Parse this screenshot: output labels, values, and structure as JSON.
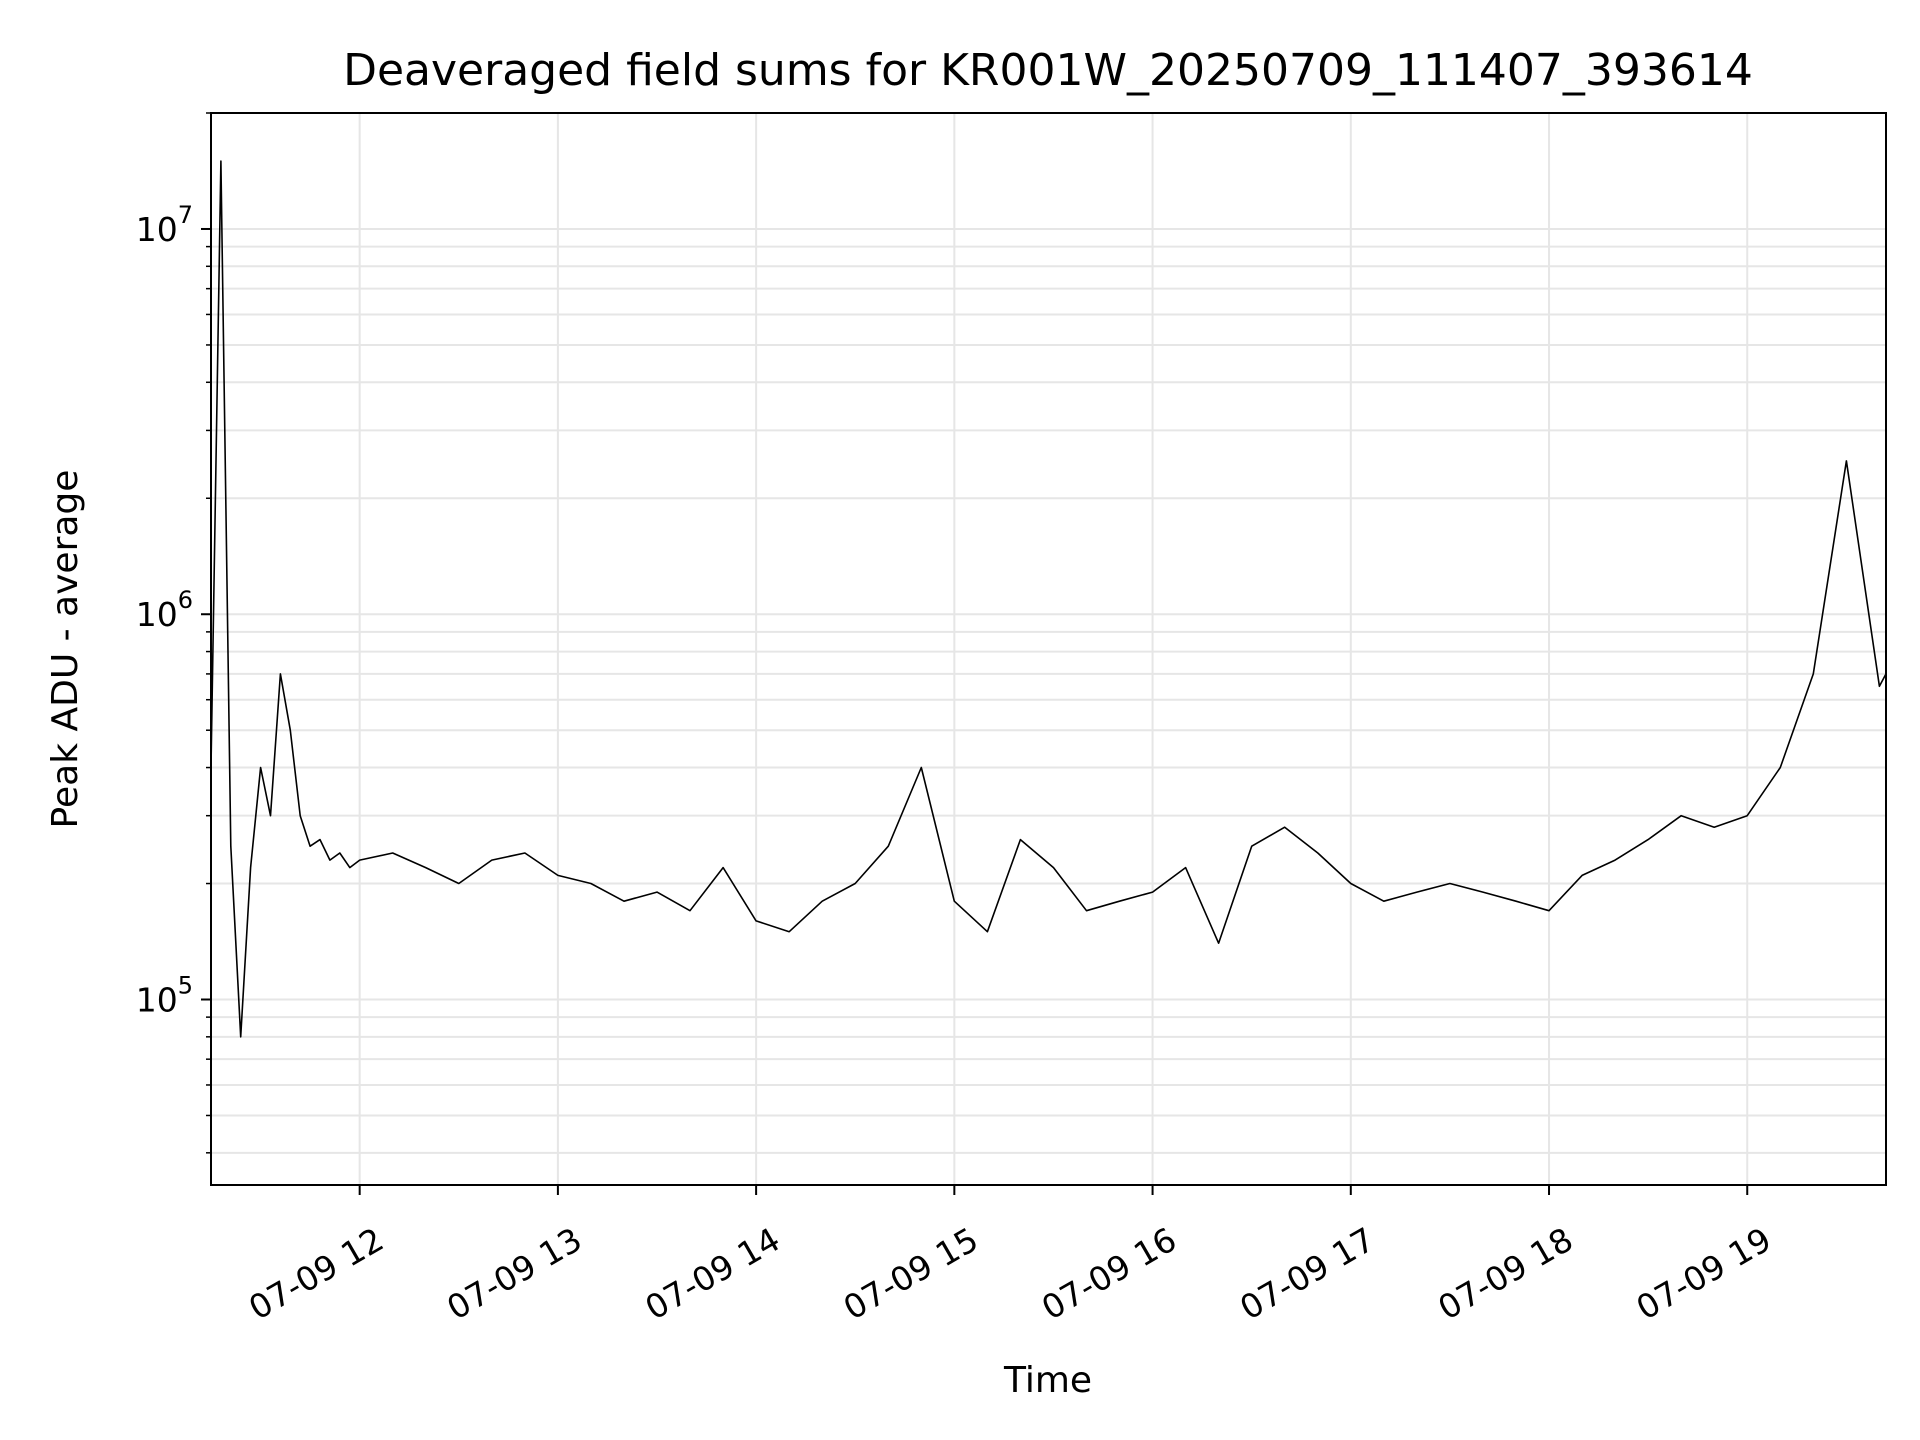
{
  "chart_data": {
    "type": "line",
    "title": "Deaveraged field sums for KR001W_20250709_111407_393614",
    "xlabel": "Time",
    "ylabel": "Peak ADU - average",
    "xlim": [
      "2025-07-09 11:15",
      "2025-07-09 19:42"
    ],
    "ylim": [
      33000,
      20000000
    ],
    "yscale": "log",
    "grid": true,
    "legend": "none",
    "line_color": "#000000",
    "grid_color": "#e6e6e6",
    "x_ticks": [
      {
        "time": "2025-07-09 12:00",
        "label": "07-09 12"
      },
      {
        "time": "2025-07-09 13:00",
        "label": "07-09 13"
      },
      {
        "time": "2025-07-09 14:00",
        "label": "07-09 14"
      },
      {
        "time": "2025-07-09 15:00",
        "label": "07-09 15"
      },
      {
        "time": "2025-07-09 16:00",
        "label": "07-09 16"
      },
      {
        "time": "2025-07-09 17:00",
        "label": "07-09 17"
      },
      {
        "time": "2025-07-09 18:00",
        "label": "07-09 18"
      },
      {
        "time": "2025-07-09 19:00",
        "label": "07-09 19"
      }
    ],
    "y_ticks": [
      {
        "value": 100000,
        "base": "10",
        "exp": "5"
      },
      {
        "value": 1000000,
        "base": "10",
        "exp": "6"
      },
      {
        "value": 10000000,
        "base": "10",
        "exp": "7"
      }
    ],
    "series": [
      {
        "x": [
          "2025-07-09 11:15",
          "2025-07-09 11:18",
          "2025-07-09 11:21",
          "2025-07-09 11:24",
          "2025-07-09 11:27",
          "2025-07-09 11:30",
          "2025-07-09 11:33",
          "2025-07-09 11:36",
          "2025-07-09 11:39",
          "2025-07-09 11:42",
          "2025-07-09 11:45",
          "2025-07-09 11:48",
          "2025-07-09 11:51",
          "2025-07-09 11:54",
          "2025-07-09 11:57",
          "2025-07-09 12:00",
          "2025-07-09 12:10",
          "2025-07-09 12:20",
          "2025-07-09 12:30",
          "2025-07-09 12:40",
          "2025-07-09 12:50",
          "2025-07-09 13:00",
          "2025-07-09 13:10",
          "2025-07-09 13:20",
          "2025-07-09 13:30",
          "2025-07-09 13:40",
          "2025-07-09 13:50",
          "2025-07-09 14:00",
          "2025-07-09 14:10",
          "2025-07-09 14:20",
          "2025-07-09 14:30",
          "2025-07-09 14:40",
          "2025-07-09 14:50",
          "2025-07-09 15:00",
          "2025-07-09 15:10",
          "2025-07-09 15:20",
          "2025-07-09 15:30",
          "2025-07-09 15:40",
          "2025-07-09 15:50",
          "2025-07-09 16:00",
          "2025-07-09 16:10",
          "2025-07-09 16:20",
          "2025-07-09 16:30",
          "2025-07-09 16:40",
          "2025-07-09 16:50",
          "2025-07-09 17:00",
          "2025-07-09 17:10",
          "2025-07-09 17:20",
          "2025-07-09 17:30",
          "2025-07-09 17:40",
          "2025-07-09 17:50",
          "2025-07-09 18:00",
          "2025-07-09 18:10",
          "2025-07-09 18:20",
          "2025-07-09 18:30",
          "2025-07-09 18:40",
          "2025-07-09 18:50",
          "2025-07-09 19:00",
          "2025-07-09 19:10",
          "2025-07-09 19:20",
          "2025-07-09 19:30",
          "2025-07-09 19:40",
          "2025-07-09 19:42"
        ],
        "y": [
          400000,
          15000000,
          250000,
          80000,
          220000,
          400000,
          300000,
          700000,
          500000,
          300000,
          250000,
          260000,
          230000,
          240000,
          220000,
          230000,
          240000,
          220000,
          200000,
          230000,
          240000,
          210000,
          200000,
          180000,
          190000,
          170000,
          220000,
          160000,
          150000,
          180000,
          200000,
          250000,
          400000,
          180000,
          150000,
          260000,
          220000,
          170000,
          180000,
          190000,
          220000,
          140000,
          250000,
          280000,
          240000,
          200000,
          180000,
          190000,
          200000,
          190000,
          180000,
          170000,
          210000,
          230000,
          260000,
          300000,
          280000,
          300000,
          400000,
          700000,
          2500000,
          650000,
          700000
        ]
      }
    ]
  }
}
